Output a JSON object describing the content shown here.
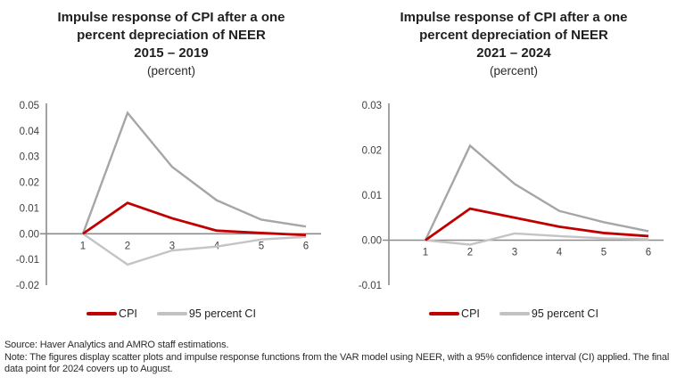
{
  "chart_data": [
    {
      "type": "line",
      "title": "Impulse response of CPI after a one percent depreciation of NEER",
      "period": "2015 – 2019",
      "unit": "(percent)",
      "x": [
        1,
        2,
        3,
        4,
        5,
        6
      ],
      "series": [
        {
          "name": "CPI",
          "color": "#c00000",
          "values": [
            0,
            0.012,
            0.006,
            0.0012,
            0.0003,
            -0.0005
          ]
        },
        {
          "name": "CI upper",
          "color": "#a6a6a6",
          "values": [
            0,
            0.047,
            0.026,
            0.013,
            0.0055,
            0.0028
          ]
        },
        {
          "name": "CI lower",
          "color": "#c4c4c4",
          "values": [
            0,
            -0.012,
            -0.0065,
            -0.005,
            -0.0022,
            -0.0012
          ]
        }
      ],
      "ylim": [
        -0.02,
        0.05
      ],
      "yticks": [
        "0.05",
        "0.04",
        "0.03",
        "0.02",
        "0.01",
        "0.00",
        "-0.01",
        "-0.02"
      ],
      "grid": false,
      "axis_color": "#8c8c8c",
      "legend_position": "bottom",
      "legend": [
        {
          "label": "CPI",
          "color": "#c00000"
        },
        {
          "label": "95 percent CI",
          "color": "#c2c2c2"
        }
      ]
    },
    {
      "type": "line",
      "title": "Impulse response of CPI after a one percent depreciation of NEER",
      "period": "2021 – 2024",
      "unit": "(percent)",
      "x": [
        1,
        2,
        3,
        4,
        5,
        6
      ],
      "series": [
        {
          "name": "CPI",
          "color": "#c00000",
          "values": [
            0,
            0.007,
            0.005,
            0.003,
            0.0016,
            0.0009
          ]
        },
        {
          "name": "CI upper",
          "color": "#a6a6a6",
          "values": [
            0,
            0.021,
            0.0125,
            0.0065,
            0.004,
            0.002
          ]
        },
        {
          "name": "CI lower",
          "color": "#c4c4c4",
          "values": [
            0,
            -0.001,
            0.0015,
            0.0009,
            0.0004,
            0.0002
          ]
        }
      ],
      "ylim": [
        -0.01,
        0.03
      ],
      "yticks": [
        "0.03",
        "0.02",
        "0.01",
        "0.00",
        "-0.01"
      ],
      "grid": false,
      "axis_color": "#8c8c8c",
      "legend_position": "bottom",
      "legend": [
        {
          "label": "CPI",
          "color": "#c00000"
        },
        {
          "label": "95 percent CI",
          "color": "#c2c2c2"
        }
      ]
    }
  ],
  "footer": {
    "source": "Source: Haver Analytics and AMRO staff estimations.",
    "note": "Note: The figures display scatter plots and impulse response functions from the VAR model using NEER, with a 95% confidence interval (CI) applied. The final data point for 2024 covers up to August."
  }
}
